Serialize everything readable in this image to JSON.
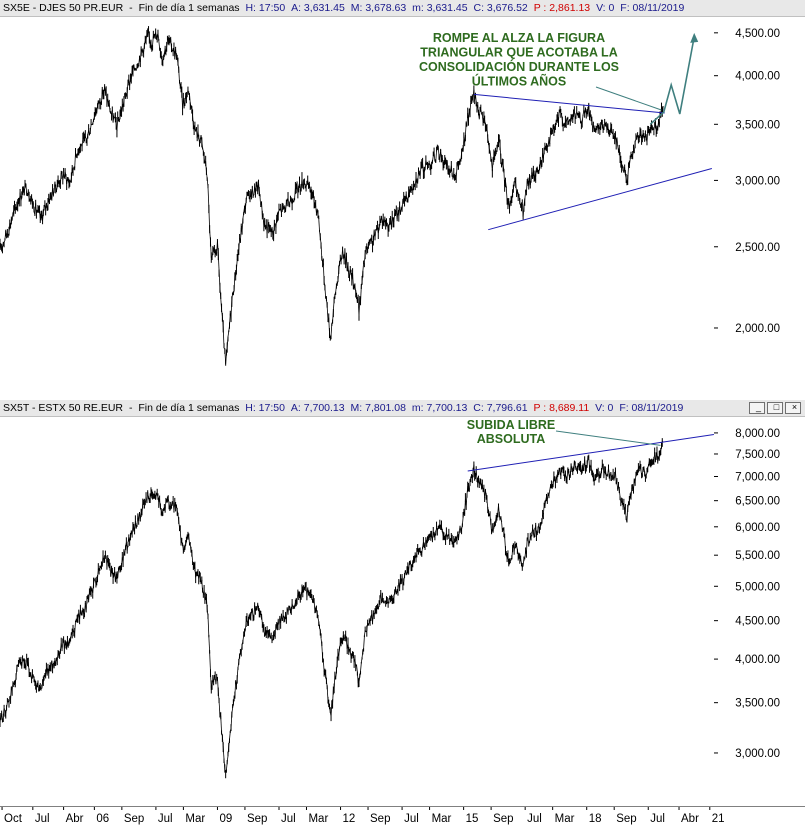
{
  "top_header": {
    "symbol": "SX5E - DJES 50 PR.EUR",
    "period": "Fin de día 1 semanas",
    "h": "H: 17:50",
    "a": "A: 3,631.45",
    "m_upper": "M: 3,678.63",
    "m_lower": "m: 3,631.45",
    "c": "C: 3,676.52",
    "p": "P : 2,861.13",
    "v": "V: 0",
    "f": "F: 08/11/2019"
  },
  "bottom_header": {
    "symbol": "SX5T - ESTX 50 RE.EUR",
    "period": "Fin de día 1 semanas",
    "h": "H: 17:50",
    "a": "A: 7,700.13",
    "m_upper": "M: 7,801.08",
    "m_lower": "m: 7,700.13",
    "c": "C: 7,796.61",
    "p": "P : 8,689.11",
    "v": "V: 0",
    "f": "F: 08/11/2019"
  },
  "window_buttons": [
    "_",
    "□",
    "×"
  ],
  "colors": {
    "price": "#000000",
    "trendline": "#1f1fb4",
    "annotation": "#2e6b1f",
    "arrow": "#3f7f7f",
    "header_bg": "#e8e8e8",
    "red": "#d00000"
  },
  "chart_data": [
    {
      "type": "line",
      "title": "SX5E - DJES 50 PR.EUR",
      "scale": "log",
      "y_ticks": [
        "4,500.00",
        "4,000.00",
        "3,500.00",
        "3,000.00",
        "2,500.00",
        "2,000.00"
      ],
      "y_tick_values": [
        4500,
        4000,
        3500,
        3000,
        2500,
        2000
      ],
      "ylim": [
        1650,
        4700
      ],
      "xlim": [
        2003.7,
        2021.2
      ],
      "x_ticks": [
        "Oct",
        "Jul",
        "Abr",
        "06",
        "Sep",
        "Jul",
        "Mar",
        "09",
        "Sep",
        "Jul",
        "Mar",
        "12",
        "Sep",
        "Jul",
        "Mar",
        "15",
        "Sep",
        "Jul",
        "Mar",
        "18",
        "Sep",
        "Jul",
        "Abr",
        "21"
      ],
      "x_tick_values": [
        2003.75,
        2004.5,
        2005.25,
        2006.0,
        2006.67,
        2007.5,
        2008.17,
        2009.0,
        2009.67,
        2010.5,
        2011.17,
        2012.0,
        2012.67,
        2013.5,
        2014.17,
        2015.0,
        2015.67,
        2016.5,
        2017.17,
        2018.0,
        2018.67,
        2019.5,
        2020.25,
        2021.0
      ],
      "series": [
        {
          "values_xy": [
            [
              2003.7,
              2480
            ],
            [
              2003.9,
              2620
            ],
            [
              2004.15,
              2850
            ],
            [
              2004.35,
              2950
            ],
            [
              2004.55,
              2780
            ],
            [
              2004.7,
              2700
            ],
            [
              2004.85,
              2820
            ],
            [
              2005.0,
              2920
            ],
            [
              2005.25,
              3050
            ],
            [
              2005.4,
              2980
            ],
            [
              2005.6,
              3280
            ],
            [
              2005.8,
              3350
            ],
            [
              2006.0,
              3600
            ],
            [
              2006.25,
              3850
            ],
            [
              2006.4,
              3620
            ],
            [
              2006.55,
              3480
            ],
            [
              2006.7,
              3700
            ],
            [
              2006.9,
              4000
            ],
            [
              2007.1,
              4200
            ],
            [
              2007.3,
              4450
            ],
            [
              2007.4,
              4400
            ],
            [
              2007.55,
              4500
            ],
            [
              2007.65,
              4200
            ],
            [
              2007.8,
              4400
            ],
            [
              2008.0,
              4250
            ],
            [
              2008.15,
              3700
            ],
            [
              2008.3,
              3850
            ],
            [
              2008.45,
              3450
            ],
            [
              2008.6,
              3350
            ],
            [
              2008.75,
              3050
            ],
            [
              2008.85,
              2400
            ],
            [
              2009.0,
              2500
            ],
            [
              2009.1,
              2100
            ],
            [
              2009.2,
              1800
            ],
            [
              2009.35,
              2150
            ],
            [
              2009.5,
              2450
            ],
            [
              2009.7,
              2850
            ],
            [
              2009.85,
              2900
            ],
            [
              2010.0,
              2950
            ],
            [
              2010.15,
              2650
            ],
            [
              2010.35,
              2600
            ],
            [
              2010.5,
              2750
            ],
            [
              2010.7,
              2800
            ],
            [
              2010.9,
              2900
            ],
            [
              2011.1,
              3000
            ],
            [
              2011.3,
              2900
            ],
            [
              2011.45,
              2750
            ],
            [
              2011.6,
              2300
            ],
            [
              2011.75,
              1950
            ],
            [
              2011.9,
              2250
            ],
            [
              2012.05,
              2480
            ],
            [
              2012.2,
              2350
            ],
            [
              2012.35,
              2250
            ],
            [
              2012.45,
              2100
            ],
            [
              2012.6,
              2450
            ],
            [
              2012.8,
              2550
            ],
            [
              2013.0,
              2700
            ],
            [
              2013.2,
              2650
            ],
            [
              2013.4,
              2750
            ],
            [
              2013.6,
              2850
            ],
            [
              2013.8,
              3000
            ],
            [
              2014.0,
              3100
            ],
            [
              2014.2,
              3150
            ],
            [
              2014.4,
              3250
            ],
            [
              2014.6,
              3100
            ],
            [
              2014.8,
              3050
            ],
            [
              2014.95,
              3200
            ],
            [
              2015.1,
              3550
            ],
            [
              2015.25,
              3800
            ],
            [
              2015.4,
              3600
            ],
            [
              2015.55,
              3500
            ],
            [
              2015.7,
              3100
            ],
            [
              2015.85,
              3350
            ],
            [
              2016.0,
              3000
            ],
            [
              2016.1,
              2800
            ],
            [
              2016.25,
              2950
            ],
            [
              2016.45,
              2750
            ],
            [
              2016.55,
              2950
            ],
            [
              2016.7,
              3050
            ],
            [
              2016.85,
              3100
            ],
            [
              2017.0,
              3300
            ],
            [
              2017.2,
              3450
            ],
            [
              2017.35,
              3600
            ],
            [
              2017.5,
              3500
            ],
            [
              2017.7,
              3600
            ],
            [
              2017.85,
              3550
            ],
            [
              2018.05,
              3650
            ],
            [
              2018.2,
              3400
            ],
            [
              2018.4,
              3500
            ],
            [
              2018.55,
              3450
            ],
            [
              2018.7,
              3400
            ],
            [
              2018.85,
              3150
            ],
            [
              2018.98,
              3000
            ],
            [
              2019.1,
              3250
            ],
            [
              2019.3,
              3400
            ],
            [
              2019.45,
              3350
            ],
            [
              2019.6,
              3500
            ],
            [
              2019.75,
              3500
            ],
            [
              2019.86,
              3680
            ]
          ]
        }
      ],
      "trendlines": [
        {
          "from": [
            2015.25,
            3800
          ],
          "to": [
            2019.9,
            3610
          ]
        },
        {
          "from": [
            2015.6,
            2620
          ],
          "to": [
            2021.05,
            3100
          ]
        }
      ],
      "annotation": [
        "ROMPE AL ALZA LA FIGURA",
        "TRIANGULAR QUE ACOTABA LA",
        "CONSOLIDACIÓN DURANTE LOS",
        "ÚLTIMOS AÑOS"
      ],
      "projection_arrow": [
        [
          2019.55,
          3500
        ],
        [
          2019.88,
          3620
        ],
        [
          2020.06,
          3900
        ],
        [
          2020.27,
          3600
        ],
        [
          2020.62,
          4450
        ]
      ]
    },
    {
      "type": "line",
      "title": "SX5T - ESTX 50 RE.EUR",
      "scale": "log",
      "y_ticks": [
        "8,000.00",
        "7,500.00",
        "7,000.00",
        "6,500.00",
        "6,000.00",
        "5,500.00",
        "5,000.00",
        "4,500.00",
        "4,000.00",
        "3,500.00",
        "3,000.00"
      ],
      "y_tick_values": [
        8000,
        7500,
        7000,
        6500,
        6000,
        5500,
        5000,
        4500,
        4000,
        3500,
        3000
      ],
      "ylim": [
        2550,
        8400
      ],
      "xlim": [
        2003.7,
        2021.2
      ],
      "x_ticks": [
        "Oct",
        "Jul",
        "Abr",
        "06",
        "Sep",
        "Jul",
        "Mar",
        "09",
        "Sep",
        "Jul",
        "Mar",
        "12",
        "Sep",
        "Jul",
        "Mar",
        "15",
        "Sep",
        "Jul",
        "Mar",
        "18",
        "Sep",
        "Jul",
        "Abr",
        "21"
      ],
      "x_tick_values": [
        2003.75,
        2004.5,
        2005.25,
        2006.0,
        2006.67,
        2007.5,
        2008.17,
        2009.0,
        2009.67,
        2010.5,
        2011.17,
        2012.0,
        2012.67,
        2013.5,
        2014.17,
        2015.0,
        2015.67,
        2016.5,
        2017.17,
        2018.0,
        2018.67,
        2019.5,
        2020.25,
        2021.0
      ],
      "series": [
        {
          "values_xy": [
            [
              2003.7,
              3300
            ],
            [
              2003.9,
              3500
            ],
            [
              2004.15,
              3900
            ],
            [
              2004.35,
              3950
            ],
            [
              2004.55,
              3700
            ],
            [
              2004.7,
              3650
            ],
            [
              2004.85,
              3850
            ],
            [
              2005.0,
              3950
            ],
            [
              2005.25,
              4200
            ],
            [
              2005.4,
              4200
            ],
            [
              2005.6,
              4550
            ],
            [
              2005.8,
              4700
            ],
            [
              2006.0,
              5050
            ],
            [
              2006.25,
              5500
            ],
            [
              2006.4,
              5250
            ],
            [
              2006.55,
              5100
            ],
            [
              2006.7,
              5450
            ],
            [
              2006.9,
              5900
            ],
            [
              2007.1,
              6200
            ],
            [
              2007.3,
              6600
            ],
            [
              2007.4,
              6550
            ],
            [
              2007.55,
              6650
            ],
            [
              2007.65,
              6300
            ],
            [
              2007.8,
              6500
            ],
            [
              2008.0,
              6350
            ],
            [
              2008.15,
              5600
            ],
            [
              2008.3,
              5800
            ],
            [
              2008.45,
              5250
            ],
            [
              2008.6,
              5100
            ],
            [
              2008.75,
              4700
            ],
            [
              2008.85,
              3700
            ],
            [
              2009.0,
              3800
            ],
            [
              2009.1,
              3200
            ],
            [
              2009.2,
              2800
            ],
            [
              2009.35,
              3350
            ],
            [
              2009.5,
              3900
            ],
            [
              2009.7,
              4500
            ],
            [
              2009.85,
              4600
            ],
            [
              2010.0,
              4700
            ],
            [
              2010.15,
              4350
            ],
            [
              2010.35,
              4250
            ],
            [
              2010.5,
              4500
            ],
            [
              2010.7,
              4600
            ],
            [
              2010.9,
              4800
            ],
            [
              2011.1,
              4950
            ],
            [
              2011.3,
              4850
            ],
            [
              2011.45,
              4550
            ],
            [
              2011.6,
              3900
            ],
            [
              2011.75,
              3350
            ],
            [
              2011.9,
              3900
            ],
            [
              2012.05,
              4300
            ],
            [
              2012.2,
              4150
            ],
            [
              2012.35,
              4000
            ],
            [
              2012.45,
              3700
            ],
            [
              2012.6,
              4350
            ],
            [
              2012.8,
              4550
            ],
            [
              2013.0,
              4850
            ],
            [
              2013.2,
              4750
            ],
            [
              2013.4,
              5000
            ],
            [
              2013.6,
              5200
            ],
            [
              2013.8,
              5450
            ],
            [
              2014.0,
              5650
            ],
            [
              2014.2,
              5800
            ],
            [
              2014.4,
              6000
            ],
            [
              2014.6,
              5800
            ],
            [
              2014.8,
              5700
            ],
            [
              2014.95,
              6000
            ],
            [
              2015.1,
              6700
            ],
            [
              2015.25,
              7150
            ],
            [
              2015.4,
              6800
            ],
            [
              2015.55,
              6600
            ],
            [
              2015.7,
              5900
            ],
            [
              2015.85,
              6350
            ],
            [
              2016.0,
              5750
            ],
            [
              2016.1,
              5350
            ],
            [
              2016.25,
              5700
            ],
            [
              2016.45,
              5300
            ],
            [
              2016.55,
              5700
            ],
            [
              2016.7,
              5900
            ],
            [
              2016.85,
              6000
            ],
            [
              2017.0,
              6450
            ],
            [
              2017.2,
              6900
            ],
            [
              2017.35,
              7150
            ],
            [
              2017.5,
              7000
            ],
            [
              2017.7,
              7250
            ],
            [
              2017.85,
              7150
            ],
            [
              2018.05,
              7350
            ],
            [
              2018.2,
              6950
            ],
            [
              2018.4,
              7150
            ],
            [
              2018.55,
              7100
            ],
            [
              2018.7,
              7000
            ],
            [
              2018.85,
              6500
            ],
            [
              2018.98,
              6150
            ],
            [
              2019.1,
              6750
            ],
            [
              2019.3,
              7150
            ],
            [
              2019.45,
              7100
            ],
            [
              2019.6,
              7400
            ],
            [
              2019.75,
              7450
            ],
            [
              2019.86,
              7800
            ]
          ]
        }
      ],
      "trendlines": [
        {
          "from": [
            2015.1,
            7120
          ],
          "to": [
            2021.1,
            7960
          ]
        }
      ],
      "annotation": [
        "SUBIDA LIBRE",
        "ABSOLUTA"
      ]
    }
  ]
}
